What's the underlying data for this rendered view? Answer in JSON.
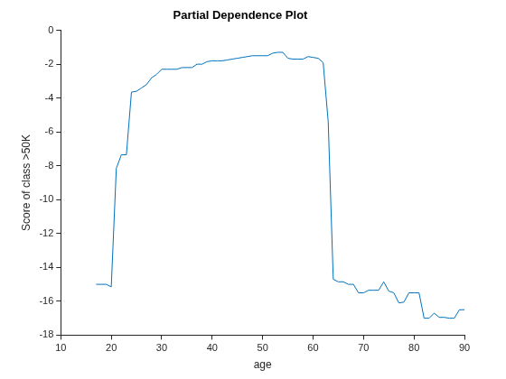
{
  "chart_data": {
    "type": "line",
    "title": "Partial Dependence Plot",
    "x_label": "age",
    "y_label": "Score of class >50K",
    "x": [
      17,
      18,
      19,
      20,
      21,
      22,
      23,
      24,
      25,
      26,
      27,
      28,
      29,
      30,
      31,
      32,
      33,
      34,
      35,
      36,
      37,
      38,
      39,
      40,
      41,
      42,
      43,
      44,
      45,
      46,
      47,
      48,
      49,
      50,
      51,
      52,
      53,
      54,
      55,
      56,
      57,
      58,
      59,
      60,
      61,
      62,
      63,
      64,
      65,
      66,
      67,
      68,
      69,
      70,
      71,
      72,
      73,
      74,
      75,
      76,
      77,
      78,
      79,
      80,
      81,
      82,
      83,
      84,
      85,
      86,
      87,
      88,
      89,
      90
    ],
    "values": [
      -15.0,
      -15.0,
      -15.0,
      -15.15,
      -8.15,
      -7.35,
      -7.35,
      -3.65,
      -3.6,
      -3.4,
      -3.2,
      -2.8,
      -2.6,
      -2.3,
      -2.3,
      -2.3,
      -2.3,
      -2.2,
      -2.2,
      -2.2,
      -2.0,
      -2.0,
      -1.85,
      -1.8,
      -1.8,
      -1.8,
      -1.75,
      -1.7,
      -1.65,
      -1.6,
      -1.55,
      -1.5,
      -1.5,
      -1.5,
      -1.5,
      -1.35,
      -1.3,
      -1.3,
      -1.65,
      -1.7,
      -1.7,
      -1.7,
      -1.55,
      -1.6,
      -1.65,
      -1.9,
      -5.4,
      -14.7,
      -14.85,
      -14.85,
      -15.0,
      -15.0,
      -15.5,
      -15.5,
      -15.35,
      -15.35,
      -15.35,
      -14.85,
      -15.4,
      -15.5,
      -16.1,
      -16.05,
      -15.5,
      -15.5,
      -15.5,
      -17.0,
      -17.0,
      -16.7,
      -16.95,
      -16.95,
      -17.0,
      -17.0,
      -16.5,
      -16.5
    ],
    "color": "#0072bd",
    "xlim": [
      10,
      90
    ],
    "xticks": [
      10,
      20,
      30,
      40,
      50,
      60,
      70,
      80,
      90
    ],
    "ylim": [
      -18,
      0
    ],
    "yticks": [
      -18,
      -16,
      -14,
      -12,
      -10,
      -8,
      -6,
      -4,
      -2,
      0
    ],
    "grid": false
  }
}
